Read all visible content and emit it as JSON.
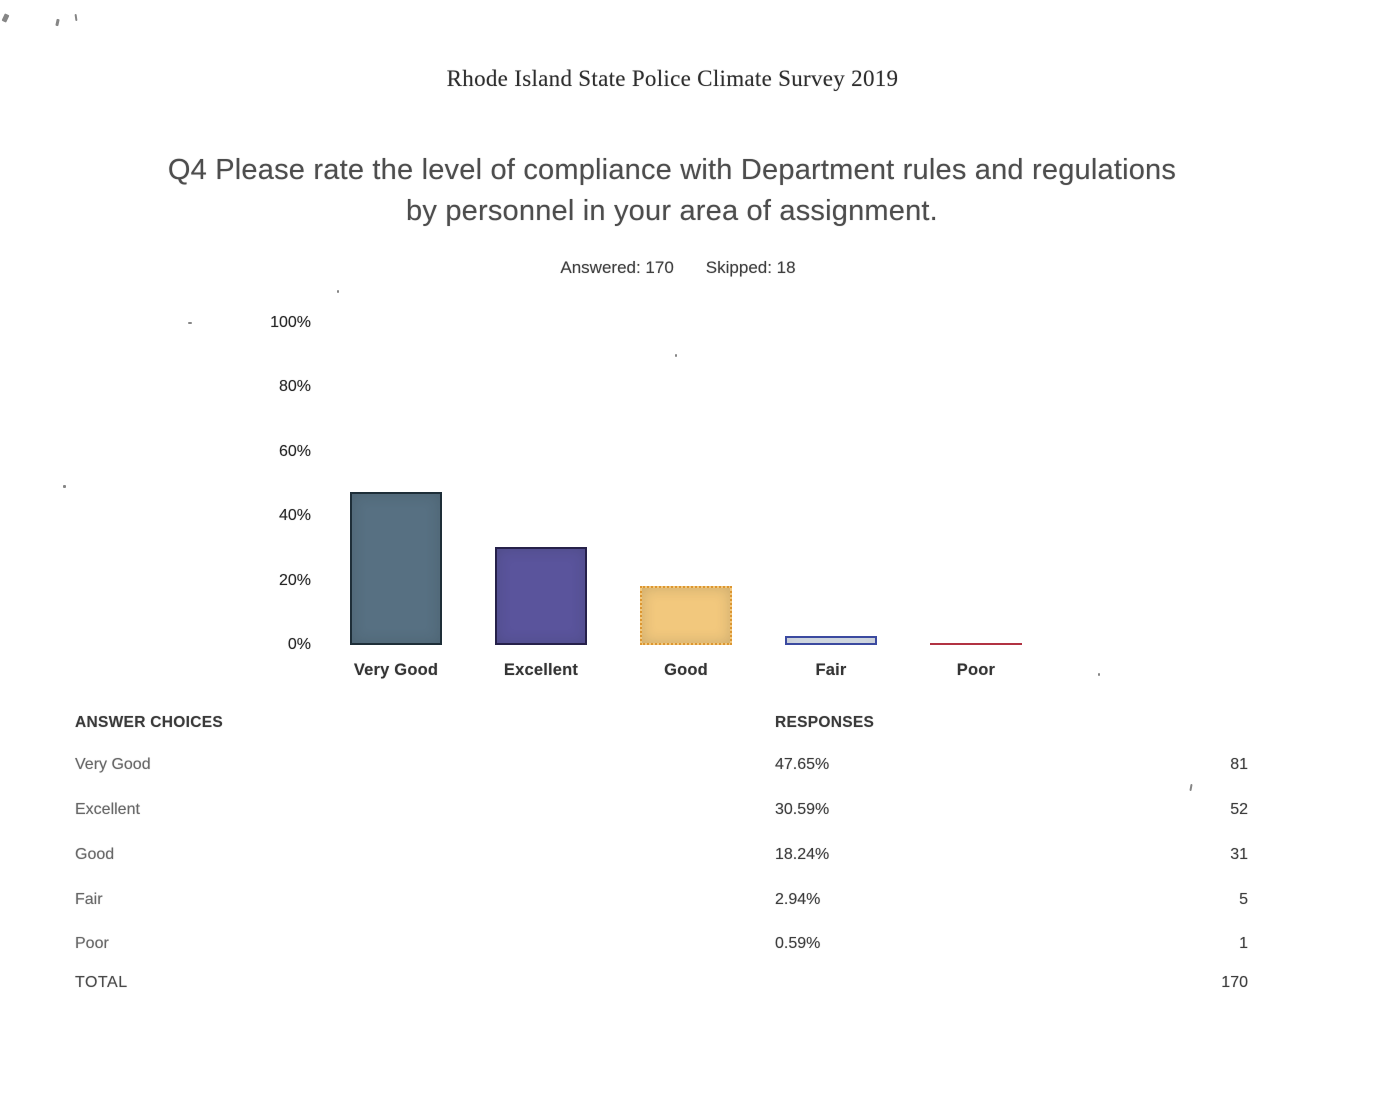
{
  "page": {
    "header": "Rhode Island State Police Climate Survey 2019",
    "answered_label": "Answered: 170",
    "skipped_label": "Skipped: 18"
  },
  "chart_data": {
    "type": "bar",
    "title": "Q4 Please rate the level of compliance with Department rules and regulations by personnel in your area of assignment.",
    "categories": [
      "Very Good",
      "Excellent",
      "Good",
      "Fair",
      "Poor"
    ],
    "values": [
      47.65,
      30.59,
      18.24,
      2.94,
      0.59
    ],
    "xlabel": "",
    "ylabel": "",
    "ylim": [
      0,
      100
    ],
    "yticks": [
      "100%",
      "80%",
      "60%",
      "40%",
      "20%",
      "0%"
    ],
    "grid": false,
    "legend_position": "none",
    "bar_styles": [
      {
        "fill": "#577082",
        "border": "#1e2e38",
        "border_width": 2,
        "border_style": "solid"
      },
      {
        "fill": "#5a549c",
        "border": "#26214a",
        "border_width": 2,
        "border_style": "solid"
      },
      {
        "fill": "#f2c87d",
        "border": "#dc9631",
        "border_width": 2,
        "border_style": "dotted"
      },
      {
        "fill": "#eaeffa",
        "border": "#3b4aa0",
        "border_width": 2,
        "border_style": "solid"
      },
      {
        "fill": "#cf3649",
        "border": "#cf3649",
        "border_width": 0,
        "border_style": "solid"
      }
    ]
  },
  "table": {
    "headers": {
      "choices": "ANSWER CHOICES",
      "responses": "RESPONSES"
    },
    "rows": [
      {
        "label": "Very Good",
        "pct": "47.65%",
        "count": "81"
      },
      {
        "label": "Excellent",
        "pct": "30.59%",
        "count": "52"
      },
      {
        "label": "Good",
        "pct": "18.24%",
        "count": "31"
      },
      {
        "label": "Fair",
        "pct": "2.94%",
        "count": "5"
      },
      {
        "label": "Poor",
        "pct": "0.59%",
        "count": "1"
      }
    ],
    "total": {
      "label": "TOTAL",
      "count": "170"
    }
  }
}
